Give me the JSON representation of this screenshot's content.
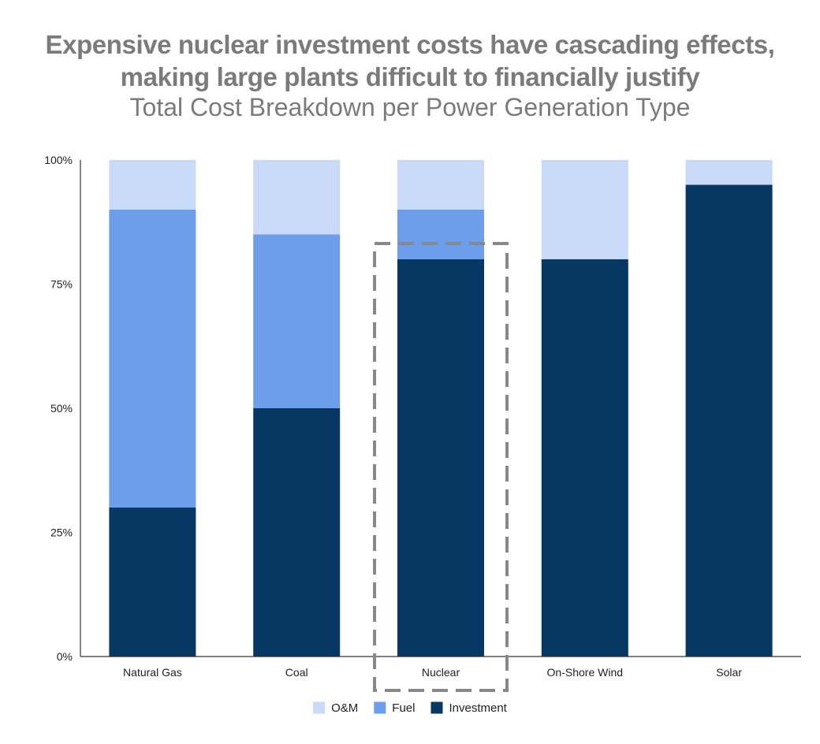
{
  "title_line1": "Expensive nuclear investment costs have cascading effects,",
  "title_line2": "making large plants difficult to financially justify",
  "subtitle": "Total Cost Breakdown per Power Generation Type",
  "chart_data": {
    "type": "bar",
    "stacked": true,
    "categories": [
      "Natural Gas",
      "Coal",
      "Nuclear",
      "On-Shore Wind",
      "Solar"
    ],
    "series": [
      {
        "name": "Investment",
        "color": "#073763",
        "values": [
          30,
          50,
          80,
          80,
          95
        ]
      },
      {
        "name": "Fuel",
        "color": "#6d9eeb",
        "values": [
          60,
          35,
          10,
          0,
          0
        ]
      },
      {
        "name": "O&M",
        "color": "#c9daf8",
        "values": [
          10,
          15,
          10,
          20,
          5
        ]
      }
    ],
    "legend_order": [
      "O&M",
      "Fuel",
      "Investment"
    ],
    "ylim": [
      0,
      100
    ],
    "yticks": [
      {
        "value": 0,
        "label": "0%"
      },
      {
        "value": 25,
        "label": "25%"
      },
      {
        "value": 50,
        "label": "50%"
      },
      {
        "value": 75,
        "label": "75%"
      },
      {
        "value": 100,
        "label": "100%"
      }
    ],
    "grid": false,
    "legend_position": "bottom",
    "highlight_category": "Nuclear",
    "highlight_color": "#888888"
  }
}
